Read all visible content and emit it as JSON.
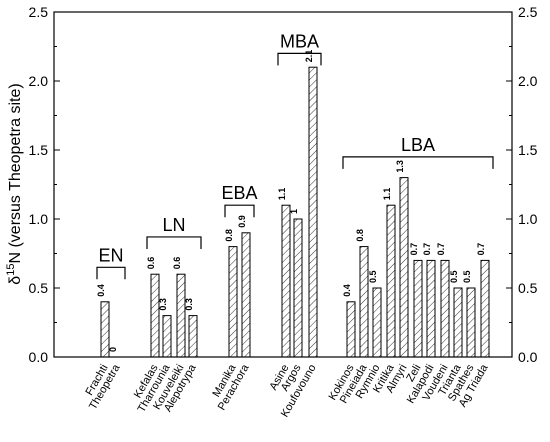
{
  "chart_data": {
    "type": "bar",
    "ylabel_prefix": "δ",
    "ylabel_sup": "15",
    "ylabel_rest": "N (versus Theopetra site)",
    "ylim": [
      0,
      2.5
    ],
    "yticks": [
      "0.0",
      "0.5",
      "1.0",
      "1.5",
      "2.0",
      "2.5"
    ],
    "categories": [
      "Frachti",
      "Theopetra",
      "Kefalas",
      "Tharrounia",
      "Kouveleiki",
      "Alepotrypa",
      "Manika",
      "Perachora",
      "Asine",
      "Argos",
      "Koufovouno",
      "Kokinos",
      "Pineiada",
      "Rymnio",
      "Kritika",
      "Almyri",
      "Zeli",
      "Kalapodi",
      "Voudeni",
      "Trianta",
      "Spathes",
      "Ag Triada"
    ],
    "values": [
      0.4,
      0,
      0.6,
      0.3,
      0.6,
      0.3,
      0.8,
      0.9,
      1.1,
      1.0,
      2.1,
      0.4,
      0.8,
      0.5,
      1.1,
      1.3,
      0.7,
      0.7,
      0.7,
      0.5,
      0.5,
      0.7
    ],
    "value_labels": [
      "0.4",
      "0",
      "0.6",
      "0.3",
      "0.6",
      "0.3",
      "0.8",
      "0.9",
      "1.1",
      "1",
      "2.1",
      "0.4",
      "0.8",
      "0.5",
      "1.1",
      "1.3",
      "0.7",
      "0.7",
      "0.7",
      "0.5",
      "0.5",
      "0.7"
    ],
    "groups": [
      {
        "label": "EN",
        "first": 0,
        "last": 1,
        "level": 0.65
      },
      {
        "label": "LN",
        "first": 2,
        "last": 5,
        "level": 0.87
      },
      {
        "label": "EBA",
        "first": 6,
        "last": 7,
        "level": 1.1
      },
      {
        "label": "MBA",
        "first": 8,
        "last": 10,
        "level": 2.2
      },
      {
        "label": "LBA",
        "first": 11,
        "last": 21,
        "level": 1.45
      }
    ],
    "colors": {
      "bar_fill": "#ffffff",
      "bar_hatch": "#000000",
      "axis": "#000000"
    }
  }
}
